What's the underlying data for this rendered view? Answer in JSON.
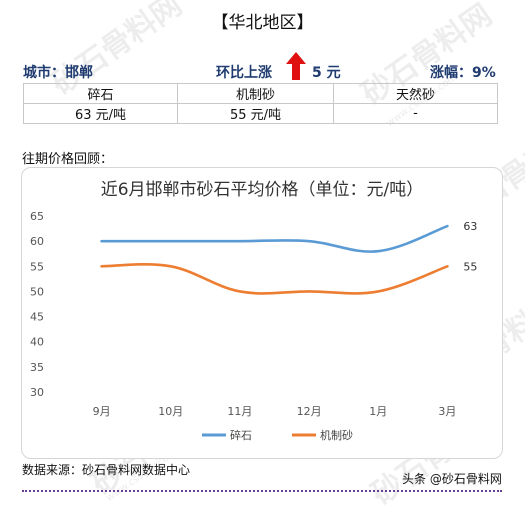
{
  "header": {
    "region": "【华北地区】",
    "city": "城市：邯郸",
    "change_label": "环比上涨",
    "change_amount": "5 元",
    "rise_pct": "涨幅：9%"
  },
  "price_table": {
    "headers": [
      "碎石",
      "机制砂",
      "天然砂"
    ],
    "values": [
      "63 元/吨",
      "55 元/吨",
      "-"
    ]
  },
  "review_label": "往期价格回顾：",
  "watermark": {
    "text": "砂石骨料网",
    "url": "www.cssglw.com"
  },
  "chart_data": {
    "type": "line",
    "title": "近6月邯郸市砂石平均价格（单位：元/吨）",
    "categories": [
      "9月",
      "10月",
      "11月",
      "12月",
      "1月",
      "3月"
    ],
    "series": [
      {
        "name": "碎石",
        "values": [
          60,
          60,
          60,
          60,
          58,
          63
        ],
        "color": "#5b9bd5"
      },
      {
        "name": "机制砂",
        "values": [
          55,
          55,
          50,
          50,
          50,
          55
        ],
        "color": "#ed7d31"
      }
    ],
    "end_labels": [
      "63",
      "55"
    ],
    "ylim": [
      30,
      65
    ],
    "yticks": [
      "30",
      "35",
      "40",
      "45",
      "50",
      "55",
      "60",
      "65"
    ],
    "smooth": true,
    "grid": false,
    "legend_position": "bottom"
  },
  "footer": {
    "source": "数据来源：砂石骨料网数据中心",
    "credit": "头条 @砂石骨料网"
  }
}
